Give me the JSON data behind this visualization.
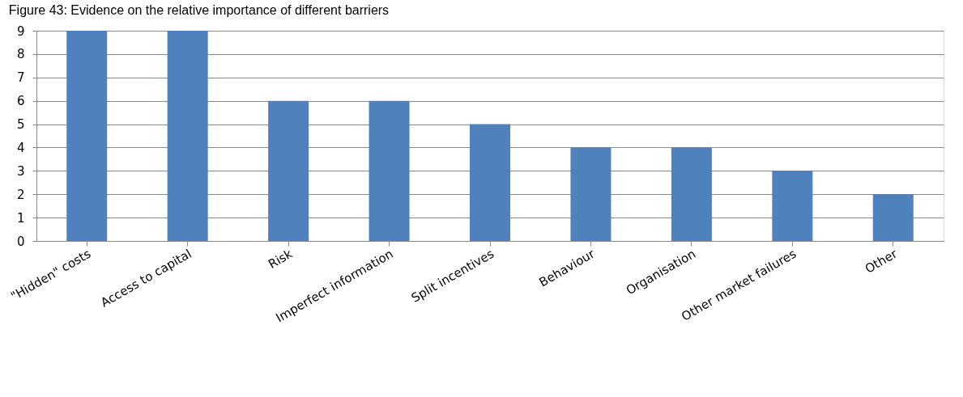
{
  "chart_data": {
    "type": "bar",
    "title": "Figure 43: Evidence on the relative importance of different barriers",
    "categories": [
      "\"Hidden\" costs",
      "Access to capital",
      "Risk",
      "Imperfect information",
      "Split incentives",
      "Behaviour",
      "Organisation",
      "Other market failures",
      "Other"
    ],
    "values": [
      9,
      9,
      6,
      6,
      5,
      4,
      4,
      3,
      2
    ],
    "color": "#4f81bd",
    "ylim": [
      0,
      9
    ],
    "yticks": [
      0,
      1,
      2,
      3,
      4,
      5,
      6,
      7,
      8,
      9
    ],
    "grid": "y"
  }
}
